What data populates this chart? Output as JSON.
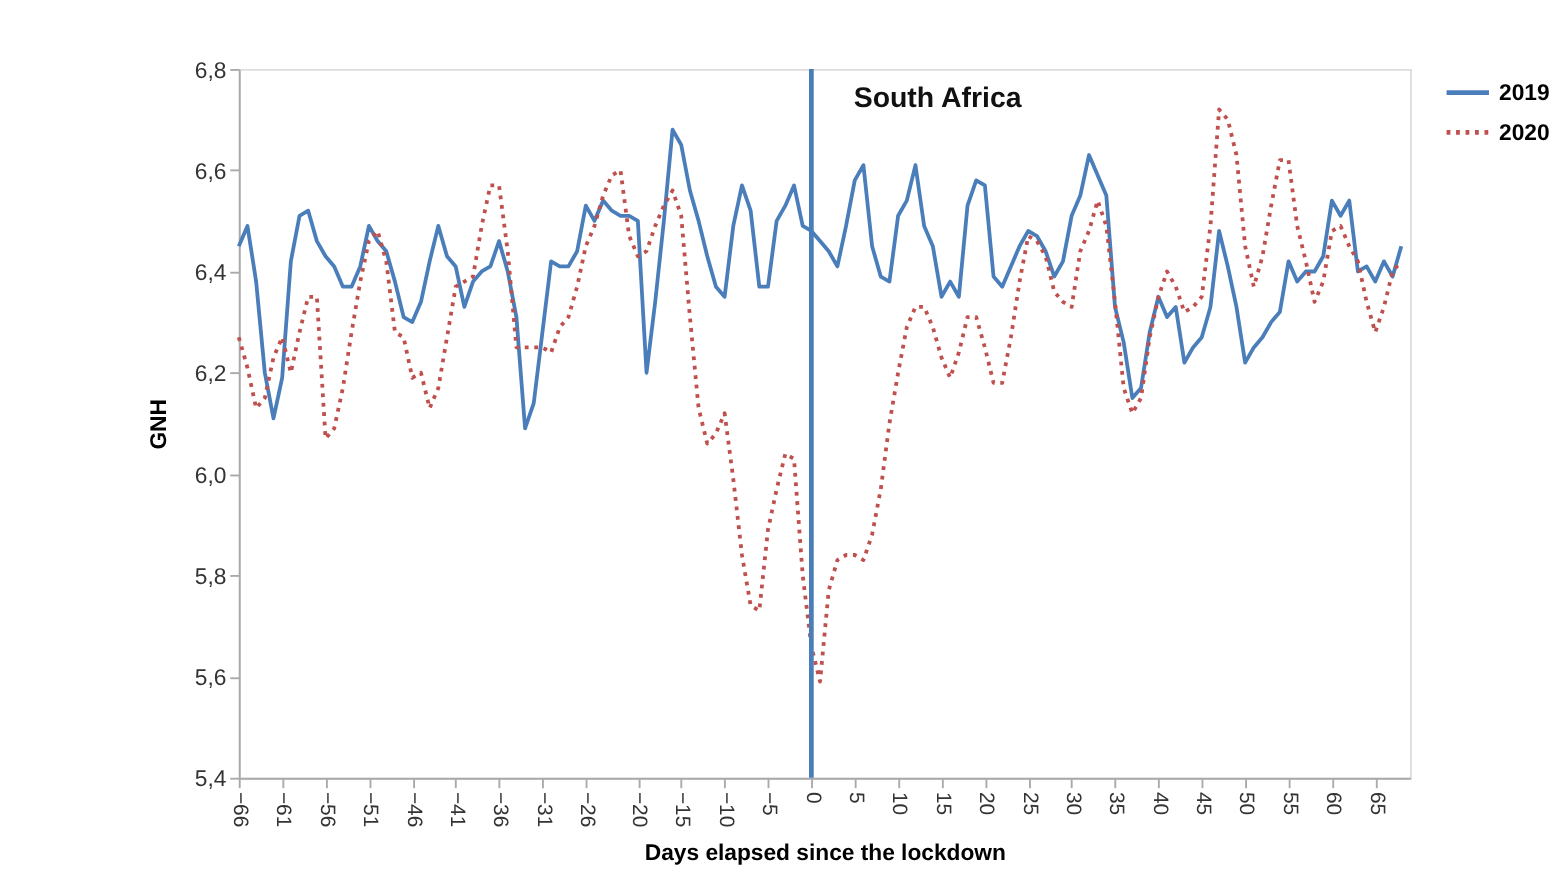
{
  "chart_data": {
    "type": "line",
    "title": "South Africa",
    "xlabel": "Days elapsed since the lockdown",
    "ylabel": "GNH",
    "x": [
      -66,
      -65,
      -64,
      -63,
      -62,
      -61,
      -60,
      -59,
      -58,
      -57,
      -56,
      -55,
      -54,
      -53,
      -52,
      -51,
      -50,
      -49,
      -48,
      -47,
      -46,
      -45,
      -44,
      -43,
      -42,
      -41,
      -40,
      -39,
      -38,
      -37,
      -36,
      -35,
      -34,
      -33,
      -32,
      -31,
      -30,
      -29,
      -28,
      -27,
      -26,
      -25,
      -24,
      -23,
      -22,
      -21,
      -20,
      -19,
      -18,
      -17,
      -16,
      -15,
      -14,
      -13,
      -12,
      -11,
      -10,
      -9,
      -8,
      -7,
      -6,
      -5,
      -4,
      -3,
      -2,
      -1,
      0,
      1,
      2,
      3,
      4,
      5,
      6,
      7,
      8,
      9,
      10,
      11,
      12,
      13,
      14,
      15,
      16,
      17,
      18,
      19,
      20,
      21,
      22,
      23,
      24,
      25,
      26,
      27,
      28,
      29,
      30,
      31,
      32,
      33,
      34,
      35,
      36,
      37,
      38,
      39,
      40,
      41,
      42,
      43,
      44,
      45,
      46,
      47,
      48,
      49,
      50,
      51,
      52,
      53,
      54,
      55,
      56,
      57,
      58,
      59,
      60,
      61,
      62,
      63,
      64,
      65,
      66,
      67,
      68
    ],
    "series": [
      {
        "name": "2019",
        "color": "#4a7ebb",
        "line_style": "solid",
        "values": [
          6.45,
          6.49,
          6.38,
          6.2,
          6.11,
          6.19,
          6.42,
          6.51,
          6.52,
          6.46,
          6.43,
          6.41,
          6.37,
          6.37,
          6.41,
          6.49,
          6.46,
          6.44,
          6.38,
          6.31,
          6.3,
          6.34,
          6.42,
          6.49,
          6.43,
          6.41,
          6.33,
          6.38,
          6.4,
          6.41,
          6.46,
          6.4,
          6.31,
          6.09,
          6.14,
          6.28,
          6.42,
          6.41,
          6.41,
          6.44,
          6.53,
          6.5,
          6.54,
          6.52,
          6.51,
          6.51,
          6.5,
          6.2,
          6.34,
          6.5,
          6.68,
          6.65,
          6.56,
          6.5,
          6.43,
          6.37,
          6.35,
          6.49,
          6.57,
          6.52,
          6.37,
          6.37,
          6.5,
          6.53,
          6.57,
          6.49,
          6.48,
          6.46,
          6.44,
          6.41,
          6.49,
          6.58,
          6.61,
          6.45,
          6.39,
          6.38,
          6.51,
          6.54,
          6.61,
          6.49,
          6.45,
          6.35,
          6.38,
          6.35,
          6.53,
          6.58,
          6.57,
          6.39,
          6.37,
          6.41,
          6.45,
          6.48,
          6.47,
          6.44,
          6.39,
          6.42,
          6.51,
          6.55,
          6.63,
          6.59,
          6.55,
          6.33,
          6.26,
          6.15,
          6.17,
          6.28,
          6.35,
          6.31,
          6.33,
          6.22,
          6.25,
          6.27,
          6.33,
          6.48,
          6.41,
          6.33,
          6.22,
          6.25,
          6.27,
          6.3,
          6.32,
          6.42,
          6.38,
          6.4,
          6.4,
          6.43,
          6.54,
          6.51,
          6.54,
          6.4,
          6.41,
          6.38,
          6.42,
          6.39,
          6.45
        ]
      },
      {
        "name": "2020",
        "color": "#c0504d",
        "line_style": "dotted",
        "values": [
          6.27,
          6.21,
          6.13,
          6.15,
          6.23,
          6.27,
          6.2,
          6.28,
          6.35,
          6.35,
          6.07,
          6.09,
          6.17,
          6.28,
          6.38,
          6.46,
          6.48,
          6.42,
          6.28,
          6.27,
          6.19,
          6.2,
          6.13,
          6.17,
          6.27,
          6.37,
          6.38,
          6.39,
          6.49,
          6.57,
          6.57,
          6.44,
          6.25,
          6.25,
          6.25,
          6.25,
          6.24,
          6.29,
          6.31,
          6.37,
          6.45,
          6.49,
          6.55,
          6.59,
          6.6,
          6.47,
          6.43,
          6.44,
          6.49,
          6.53,
          6.56,
          6.51,
          6.31,
          6.13,
          6.06,
          6.08,
          6.12,
          5.99,
          5.84,
          5.74,
          5.73,
          5.89,
          5.97,
          6.04,
          6.03,
          5.8,
          5.66,
          5.59,
          5.77,
          5.83,
          5.84,
          5.84,
          5.83,
          5.88,
          5.97,
          6.1,
          6.2,
          6.29,
          6.33,
          6.33,
          6.29,
          6.23,
          6.19,
          6.24,
          6.31,
          6.31,
          6.25,
          6.18,
          6.18,
          6.27,
          6.38,
          6.47,
          6.46,
          6.43,
          6.36,
          6.34,
          6.33,
          6.44,
          6.48,
          6.54,
          6.49,
          6.34,
          6.17,
          6.12,
          6.15,
          6.27,
          6.35,
          6.4,
          6.37,
          6.32,
          6.33,
          6.35,
          6.49,
          6.72,
          6.7,
          6.63,
          6.45,
          6.37,
          6.43,
          6.53,
          6.62,
          6.62,
          6.49,
          6.42,
          6.34,
          6.38,
          6.48,
          6.49,
          6.45,
          6.42,
          6.34,
          6.28,
          6.33,
          6.4,
          6.42
        ]
      }
    ],
    "xlim": [
      -66,
      69
    ],
    "xticks": [
      -66,
      -61,
      -56,
      -51,
      -46,
      -41,
      -36,
      -31,
      -26,
      -20,
      -15,
      -10,
      -5,
      0,
      5,
      10,
      15,
      20,
      25,
      30,
      35,
      40,
      45,
      50,
      55,
      60,
      65
    ],
    "ylim": [
      5.4,
      6.8
    ],
    "yticks": [
      {
        "value": 5.4,
        "label": "5,4"
      },
      {
        "value": 5.6,
        "label": "5,6"
      },
      {
        "value": 5.8,
        "label": "5,8"
      },
      {
        "value": 6.0,
        "label": "6,0"
      },
      {
        "value": 6.2,
        "label": "6,2"
      },
      {
        "value": 6.4,
        "label": "6,4"
      },
      {
        "value": 6.6,
        "label": "6,6"
      },
      {
        "value": 6.8,
        "label": "6,8"
      }
    ],
    "ref_lines": [
      {
        "axis": "x",
        "value": 0,
        "color": "#4a7ebb",
        "line_style": "solid"
      }
    ],
    "grid": false,
    "legend": "right",
    "marker": "none"
  }
}
